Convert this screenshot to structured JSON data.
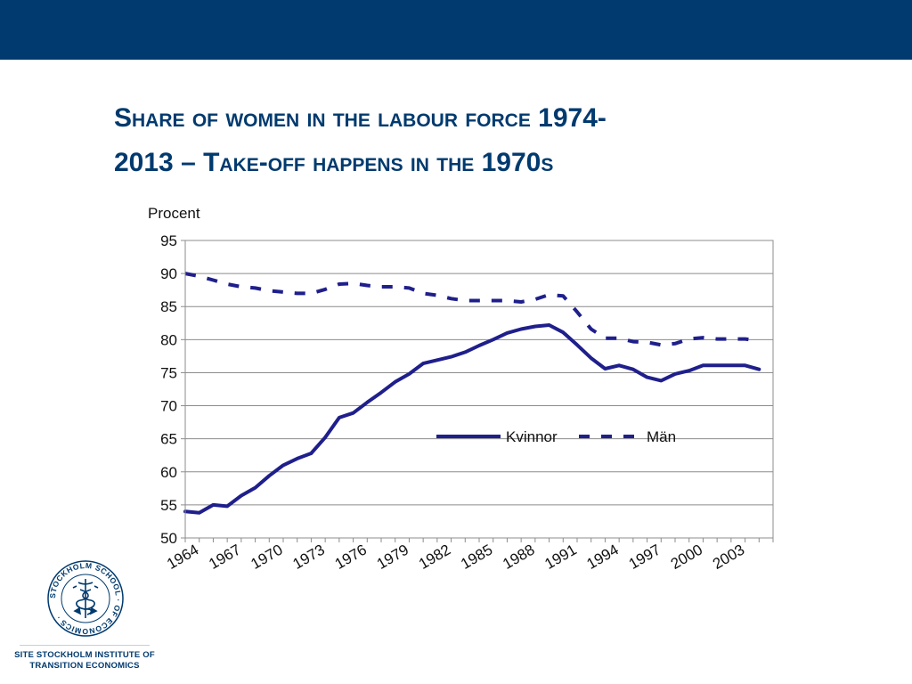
{
  "slide": {
    "title_line1": "Share of women in the labour force 1974-",
    "title_line2": "2013 – Take-off happens in the 1970s"
  },
  "chart_data": {
    "type": "line",
    "ylabel": "Procent",
    "ylim": [
      50,
      95
    ],
    "yticks": [
      50,
      55,
      60,
      65,
      70,
      75,
      80,
      85,
      90,
      95
    ],
    "xlim": [
      1964,
      2006
    ],
    "xticks": [
      1964,
      1967,
      1970,
      1973,
      1976,
      1979,
      1982,
      1985,
      1988,
      1991,
      1994,
      1997,
      2000,
      2003
    ],
    "grid": true,
    "legend_position": "center-right",
    "series": [
      {
        "name": "Kvinnor",
        "style": "solid",
        "color": "#1f1f8c",
        "x": [
          1964,
          1965,
          1966,
          1967,
          1968,
          1969,
          1970,
          1971,
          1972,
          1973,
          1974,
          1975,
          1976,
          1977,
          1978,
          1979,
          1980,
          1981,
          1982,
          1983,
          1984,
          1985,
          1986,
          1987,
          1988,
          1989,
          1990,
          1991,
          1992,
          1993,
          1994,
          1995,
          1996,
          1997,
          1998,
          1999,
          2000,
          2001,
          2002,
          2003,
          2004,
          2005
        ],
        "values": [
          54,
          53.8,
          55,
          54.8,
          56.4,
          57.6,
          59.4,
          61,
          62,
          62.8,
          65.2,
          68.2,
          68.9,
          70.5,
          72,
          73.6,
          74.8,
          76.4,
          76.9,
          77.4,
          78.1,
          79.1,
          80,
          81,
          81.6,
          82,
          82.2,
          81.1,
          79.2,
          77.2,
          75.6,
          76.1,
          75.5,
          74.3,
          73.8,
          74.8,
          75.3,
          76.1,
          76.1,
          76.1,
          76.1,
          75.5
        ]
      },
      {
        "name": "Män",
        "style": "dashed",
        "color": "#1f1f8c",
        "x": [
          1964,
          1965,
          1966,
          1967,
          1968,
          1969,
          1970,
          1971,
          1972,
          1973,
          1974,
          1975,
          1976,
          1977,
          1978,
          1979,
          1980,
          1981,
          1982,
          1983,
          1984,
          1985,
          1986,
          1987,
          1988,
          1989,
          1990,
          1991,
          1992,
          1993,
          1994,
          1995,
          1996,
          1997,
          1998,
          1999,
          2000,
          2001,
          2002,
          2003,
          2004,
          2005
        ],
        "values": [
          90,
          89.6,
          89,
          88.4,
          88,
          87.8,
          87.4,
          87.2,
          87,
          87,
          87.6,
          88.4,
          88.5,
          88.2,
          88,
          88,
          87.8,
          87,
          86.7,
          86.2,
          85.9,
          85.9,
          85.9,
          85.9,
          85.7,
          86.1,
          86.8,
          86.6,
          84.2,
          81.6,
          80.2,
          80.2,
          79.7,
          79.6,
          79.2,
          79.4,
          80.1,
          80.3,
          80.1,
          80.1,
          80.1,
          79.8
        ]
      }
    ]
  },
  "logo": {
    "text_line1": "SITE STOCKHOLM INSTITUTE OF",
    "text_line2": "TRANSITION ECONOMICS",
    "ring_text": "STOCKHOLM SCHOOL · OF ECONOMICS ·",
    "color": "#003a6e"
  }
}
